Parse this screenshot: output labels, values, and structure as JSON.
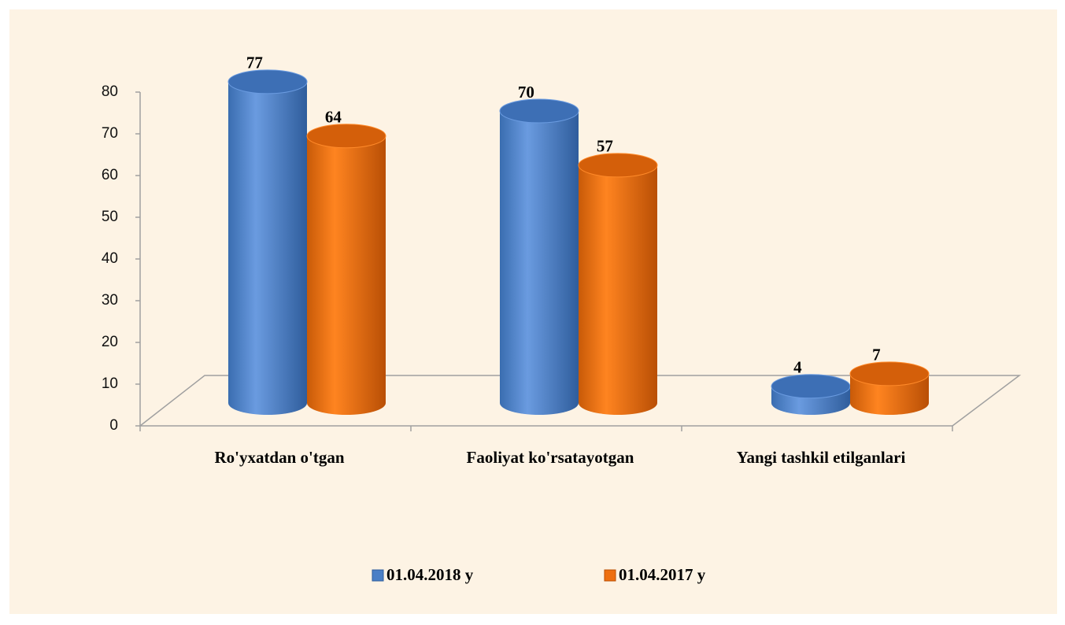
{
  "chart_data": {
    "type": "bar",
    "categories": [
      "Ro'yxatdan o'tgan",
      "Faoliyat ko'rsatayotgan",
      "Yangi tashkil etilganlari"
    ],
    "series": [
      {
        "name": "01.04.2018 y",
        "color": "#4a7fc6",
        "values": [
          77,
          70,
          4
        ]
      },
      {
        "name": "01.04.2017 y",
        "color": "#ee6f10",
        "values": [
          64,
          57,
          7
        ]
      }
    ],
    "ylim": [
      0,
      80
    ],
    "yticks": [
      0,
      10,
      20,
      30,
      40,
      50,
      60,
      70,
      80
    ],
    "grid": false,
    "legend": "bottom"
  }
}
